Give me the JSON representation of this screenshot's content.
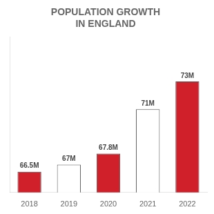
{
  "chart_data": {
    "type": "bar",
    "title": [
      "POPULATION GROWTH",
      "IN ENGLAND"
    ],
    "categories": [
      "2018",
      "2019",
      "2020",
      "2021",
      "2022"
    ],
    "values": [
      66.5,
      67.0,
      67.8,
      71.0,
      73.0
    ],
    "value_labels": [
      "66.5M",
      "67M",
      "67.8M",
      "71M",
      "73M"
    ],
    "colors": [
      "#D0202A",
      "#FFFFFF",
      "#D0202A",
      "#FFFFFF",
      "#D0202A"
    ],
    "ylim": [
      65.0,
      76.21
    ],
    "grid": false,
    "data_labels": true,
    "tick_labels": "x"
  }
}
